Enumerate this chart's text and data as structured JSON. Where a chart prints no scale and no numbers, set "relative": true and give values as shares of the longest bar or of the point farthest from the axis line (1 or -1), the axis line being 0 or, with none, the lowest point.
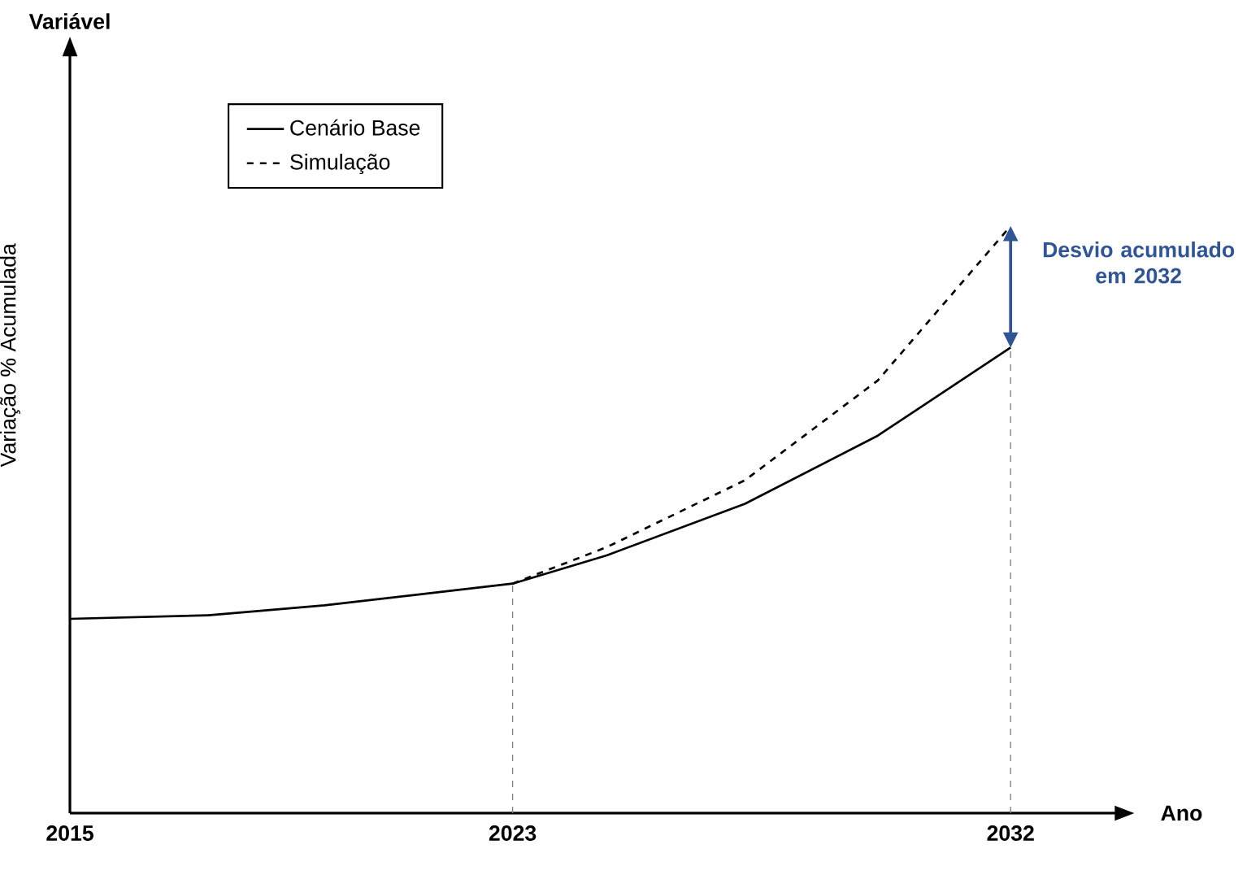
{
  "chart_data": {
    "type": "line",
    "relative": true,
    "xlabel": "Ano",
    "ylabel": "Variação % Acumulada",
    "xlim": [
      2015,
      2034
    ],
    "xticks": [
      2015,
      2023,
      2032
    ],
    "legend": "top left",
    "series": [
      {
        "name": "Cenário Base",
        "color": "#000000",
        "line_style": "solid",
        "x": [
          2015,
          2017.5,
          2019.6,
          2023,
          2024.7,
          2027.2,
          2029.6,
          2032
        ],
        "values": [
          0.331,
          0.337,
          0.354,
          0.391,
          0.439,
          0.527,
          0.643,
          0.793
        ]
      },
      {
        "name": "Simulação",
        "color": "#000000",
        "line_style": "dashed",
        "x": [
          2023,
          2024.7,
          2027.2,
          2029.6,
          2032
        ],
        "values": [
          0.391,
          0.453,
          0.567,
          0.737,
          1.0
        ]
      }
    ],
    "ref_lines": [
      {
        "axis": "x",
        "value": 2023,
        "color": "#808080",
        "line_style": "dashed"
      },
      {
        "axis": "x",
        "value": 2032,
        "color": "#808080",
        "line_style": "dashed"
      }
    ],
    "annotations": [
      "Variável",
      "Desvio acumulado em 2032"
    ]
  }
}
